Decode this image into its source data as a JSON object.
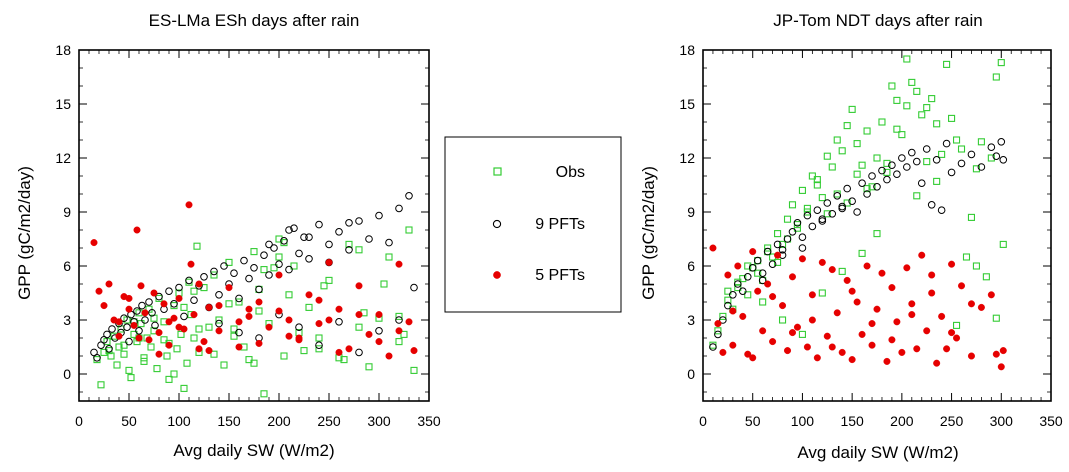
{
  "chart_data": [
    {
      "type": "scatter",
      "title": "ES-LMa ESh days after rain",
      "xlabel": "Avg daily SW (W/m2)",
      "ylabel": "GPP (gC/m2/day)",
      "xlim": [
        0,
        350
      ],
      "ylim": [
        -1.5,
        18
      ],
      "xticks": [
        "0",
        "50",
        "100",
        "150",
        "200",
        "250",
        "300",
        "350"
      ],
      "yticks": [
        "0",
        "3",
        "6",
        "9",
        "12",
        "15",
        "18"
      ],
      "grid": false,
      "series": [
        {
          "name": "Obs",
          "marker": "square",
          "color": "#33cc33",
          "x": [
            18,
            22,
            25,
            28,
            32,
            35,
            38,
            40,
            42,
            45,
            48,
            50,
            52,
            55,
            58,
            60,
            62,
            65,
            68,
            70,
            72,
            75,
            78,
            80,
            85,
            88,
            90,
            95,
            98,
            100,
            102,
            105,
            108,
            110,
            112,
            115,
            118,
            120,
            125,
            130,
            135,
            140,
            145,
            150,
            155,
            160,
            165,
            170,
            175,
            180,
            185,
            190,
            195,
            200,
            205,
            210,
            215,
            220,
            230,
            240,
            250,
            260,
            270,
            280,
            290,
            300,
            310,
            320,
            330,
            335,
            45,
            55,
            65,
            75,
            85,
            95,
            105,
            115,
            135,
            155,
            175,
            185,
            205,
            225,
            245,
            265,
            285,
            305,
            325,
            30,
            60,
            90,
            120,
            150,
            180,
            200,
            240,
            280,
            320
          ],
          "y": [
            0.8,
            -0.6,
            1.2,
            1.8,
            1.0,
            2.1,
            0.5,
            1.5,
            2.5,
            1.1,
            3.0,
            0.2,
            -0.2,
            2.2,
            1.8,
            3.4,
            2.8,
            0.9,
            2.0,
            3.6,
            1.5,
            2.4,
            0.3,
            4.2,
            2.9,
            1.0,
            -0.3,
            3.8,
            1.4,
            4.5,
            2.2,
            -0.8,
            0.6,
            5.1,
            3.3,
            2.0,
            7.1,
            1.2,
            4.8,
            2.6,
            5.5,
            3.0,
            0.5,
            6.2,
            2.1,
            4.0,
            1.5,
            0.8,
            6.8,
            3.5,
            -1.1,
            2.8,
            5.9,
            7.5,
            1.0,
            4.4,
            6.0,
            2.3,
            3.7,
            1.4,
            5.2,
            0.9,
            7.2,
            2.6,
            0.4,
            3.1,
            6.5,
            1.8,
            8.0,
            0.2,
            1.6,
            2.9,
            0.7,
            3.1,
            1.9,
            0.0,
            3.7,
            4.6,
            1.1,
            2.5,
            0.6,
            5.8,
            7.3,
            1.3,
            4.9,
            0.8,
            3.4,
            5.0,
            2.2,
            1.3,
            2.0,
            1.7,
            2.5,
            3.9,
            4.7,
            6.5,
            2.0,
            6.9,
            3.2
          ]
        },
        {
          "name": "9 PFTs",
          "marker": "open-circle",
          "color": "#000000",
          "x": [
            15,
            18,
            22,
            25,
            28,
            30,
            33,
            36,
            40,
            42,
            45,
            48,
            50,
            52,
            55,
            58,
            60,
            63,
            66,
            70,
            73,
            76,
            80,
            85,
            90,
            95,
            100,
            105,
            110,
            115,
            120,
            125,
            130,
            135,
            140,
            145,
            150,
            155,
            160,
            165,
            170,
            175,
            180,
            185,
            190,
            195,
            200,
            205,
            210,
            215,
            220,
            225,
            230,
            240,
            250,
            260,
            270,
            280,
            290,
            300,
            310,
            320,
            330,
            335,
            140,
            160,
            180,
            200,
            220,
            240,
            260,
            280,
            300,
            320,
            190,
            210,
            230,
            250,
            270
          ],
          "y": [
            1.2,
            0.9,
            1.6,
            1.9,
            2.2,
            1.4,
            2.5,
            2.0,
            2.8,
            2.3,
            3.1,
            2.6,
            1.8,
            3.3,
            2.9,
            3.5,
            2.4,
            3.8,
            3.0,
            4.0,
            3.4,
            2.7,
            4.3,
            3.6,
            4.6,
            3.9,
            4.8,
            3.2,
            5.2,
            4.1,
            4.9,
            5.4,
            3.7,
            5.7,
            4.4,
            6.0,
            5.0,
            5.6,
            4.2,
            6.3,
            5.3,
            5.9,
            4.7,
            6.6,
            5.5,
            7.0,
            6.1,
            7.4,
            5.8,
            8.1,
            6.7,
            7.6,
            6.4,
            8.3,
            7.2,
            7.9,
            6.9,
            8.5,
            7.5,
            8.8,
            7.3,
            9.2,
            9.9,
            4.8,
            2.8,
            2.3,
            2.0,
            3.3,
            2.6,
            1.6,
            2.9,
            1.2,
            2.4,
            3.0,
            7.2,
            8.0,
            7.6,
            6.2,
            8.4
          ]
        },
        {
          "name": "5 PFTs",
          "marker": "filled-circle",
          "color": "#e60000",
          "x": [
            15,
            20,
            25,
            30,
            35,
            40,
            45,
            50,
            55,
            58,
            62,
            66,
            70,
            75,
            80,
            85,
            90,
            95,
            100,
            105,
            110,
            112,
            115,
            120,
            125,
            130,
            140,
            150,
            160,
            170,
            180,
            190,
            200,
            210,
            220,
            230,
            240,
            250,
            260,
            270,
            280,
            290,
            300,
            310,
            320,
            330,
            335,
            40,
            60,
            80,
            100,
            120,
            140,
            160,
            180,
            200,
            220,
            240,
            260,
            280,
            300,
            320,
            50,
            90,
            130,
            170,
            210,
            250
          ],
          "y": [
            7.3,
            4.6,
            3.8,
            5.0,
            3.0,
            2.1,
            4.3,
            3.6,
            2.7,
            8.0,
            4.9,
            3.4,
            1.9,
            4.5,
            2.3,
            3.9,
            1.6,
            3.1,
            4.2,
            2.5,
            9.4,
            6.1,
            3.3,
            5.0,
            1.8,
            3.7,
            2.4,
            4.8,
            1.5,
            3.2,
            4.0,
            2.6,
            5.5,
            3.0,
            1.9,
            4.4,
            2.8,
            6.2,
            3.6,
            1.4,
            4.9,
            2.2,
            3.3,
            1.0,
            6.1,
            2.9,
            1.3,
            2.9,
            2.0,
            1.1,
            2.6,
            1.4,
            3.8,
            2.9,
            1.7,
            3.5,
            2.0,
            4.1,
            1.2,
            3.3,
            1.8,
            2.4,
            4.2,
            2.9,
            1.3,
            3.6,
            2.1,
            3.0
          ]
        }
      ]
    },
    {
      "type": "scatter",
      "title": "JP-Tom NDT days after rain",
      "xlabel": "Avg daily SW (W/m2)",
      "ylabel": "GPP (gC/m2/day)",
      "xlim": [
        0,
        350
      ],
      "ylim": [
        -1.5,
        18
      ],
      "xticks": [
        "0",
        "50",
        "100",
        "150",
        "200",
        "250",
        "300",
        "350"
      ],
      "yticks": [
        "0",
        "3",
        "6",
        "9",
        "12",
        "15",
        "18"
      ],
      "grid": false,
      "series": [
        {
          "name": "Obs",
          "marker": "square",
          "color": "#33cc33",
          "x": [
            10,
            15,
            20,
            25,
            30,
            35,
            40,
            45,
            50,
            55,
            60,
            65,
            70,
            75,
            80,
            85,
            90,
            95,
            100,
            105,
            110,
            115,
            120,
            125,
            130,
            135,
            140,
            145,
            150,
            155,
            160,
            165,
            170,
            175,
            180,
            185,
            190,
            195,
            200,
            205,
            210,
            215,
            220,
            225,
            230,
            235,
            240,
            250,
            255,
            260,
            270,
            275,
            280,
            290,
            295,
            300,
            302,
            25,
            35,
            45,
            55,
            65,
            75,
            85,
            95,
            105,
            115,
            125,
            135,
            145,
            155,
            165,
            175,
            185,
            195,
            205,
            215,
            225,
            235,
            245,
            255,
            265,
            275,
            285,
            295,
            60,
            80,
            100,
            120,
            140,
            160
          ],
          "y": [
            1.6,
            2.4,
            3.2,
            4.1,
            3.6,
            4.8,
            5.3,
            4.4,
            5.9,
            6.3,
            5.2,
            7.0,
            6.5,
            7.8,
            7.2,
            8.6,
            9.4,
            8.1,
            10.2,
            9.0,
            11.0,
            10.5,
            9.8,
            12.1,
            11.5,
            13.0,
            12.4,
            13.8,
            14.7,
            12.8,
            11.6,
            13.5,
            10.4,
            7.8,
            14.0,
            11.2,
            16.0,
            15.2,
            13.3,
            17.5,
            16.2,
            9.9,
            14.4,
            11.8,
            15.3,
            10.7,
            12.2,
            14.2,
            13.0,
            12.5,
            8.7,
            11.4,
            12.9,
            12.0,
            16.5,
            17.3,
            7.2,
            4.6,
            5.1,
            6.0,
            5.6,
            6.8,
            6.2,
            7.5,
            8.3,
            9.2,
            10.8,
            8.9,
            10.0,
            9.5,
            11.1,
            10.3,
            12.0,
            11.7,
            13.6,
            14.9,
            15.7,
            14.8,
            13.9,
            17.2,
            2.7,
            6.5,
            6.0,
            5.4,
            3.1,
            4.0,
            3.0,
            2.2,
            4.5,
            5.7,
            6.7
          ]
        },
        {
          "name": "9 PFTs",
          "marker": "open-circle",
          "color": "#000000",
          "x": [
            10,
            15,
            20,
            25,
            30,
            35,
            40,
            45,
            50,
            55,
            60,
            65,
            70,
            75,
            80,
            85,
            90,
            95,
            100,
            105,
            110,
            115,
            120,
            125,
            130,
            135,
            140,
            145,
            150,
            155,
            160,
            165,
            170,
            175,
            180,
            185,
            190,
            195,
            200,
            205,
            210,
            215,
            220,
            225,
            230,
            235,
            240,
            245,
            250,
            260,
            270,
            280,
            290,
            295,
            300,
            302,
            60,
            80,
            100,
            120,
            140
          ],
          "y": [
            1.5,
            2.2,
            3.0,
            3.8,
            4.4,
            5.0,
            4.6,
            5.4,
            5.9,
            6.3,
            5.6,
            6.8,
            6.1,
            7.2,
            6.6,
            7.5,
            7.9,
            8.4,
            7.0,
            8.8,
            8.2,
            9.1,
            8.6,
            9.5,
            8.9,
            9.9,
            9.2,
            10.3,
            9.6,
            9.0,
            10.6,
            10.0,
            11.0,
            10.4,
            11.3,
            10.8,
            11.6,
            11.1,
            12.0,
            11.5,
            12.3,
            11.8,
            10.6,
            12.5,
            9.4,
            11.9,
            9.1,
            12.8,
            11.2,
            11.7,
            12.2,
            11.5,
            12.6,
            12.1,
            12.9,
            11.9,
            5.2,
            6.9,
            7.6,
            8.5,
            9.3
          ]
        },
        {
          "name": "5 PFTs",
          "marker": "filled-circle",
          "color": "#e60000",
          "x": [
            10,
            15,
            20,
            25,
            30,
            35,
            40,
            45,
            50,
            55,
            60,
            65,
            70,
            75,
            80,
            85,
            90,
            95,
            100,
            105,
            110,
            115,
            120,
            125,
            130,
            135,
            140,
            145,
            150,
            155,
            160,
            165,
            170,
            175,
            180,
            185,
            190,
            195,
            200,
            205,
            210,
            215,
            220,
            225,
            230,
            235,
            240,
            245,
            250,
            255,
            260,
            270,
            280,
            290,
            295,
            300,
            302,
            30,
            50,
            70,
            90,
            110,
            130,
            150,
            170,
            190,
            210,
            230,
            250,
            270
          ],
          "y": [
            7.0,
            2.8,
            1.2,
            5.5,
            1.6,
            6.0,
            3.2,
            1.1,
            6.8,
            4.6,
            2.4,
            5.0,
            1.8,
            6.6,
            3.8,
            1.3,
            5.4,
            2.6,
            6.4,
            1.5,
            4.4,
            0.9,
            6.2,
            2.1,
            5.8,
            3.4,
            1.2,
            5.2,
            0.8,
            4.0,
            2.2,
            6.0,
            1.6,
            3.6,
            5.6,
            0.7,
            4.8,
            2.9,
            1.2,
            5.9,
            3.9,
            1.4,
            6.6,
            2.4,
            5.5,
            0.6,
            3.2,
            1.4,
            6.1,
            2.0,
            4.9,
            1.0,
            3.7,
            4.4,
            1.1,
            0.4,
            1.3,
            3.5,
            0.9,
            4.3,
            2.3,
            3.0,
            1.5,
            4.6,
            2.8,
            1.9,
            3.3,
            4.5,
            2.3,
            3.9
          ]
        }
      ]
    }
  ],
  "legend": {
    "entries": [
      {
        "label": "Obs",
        "marker": "square",
        "color": "#33cc33"
      },
      {
        "label": "9 PFTs",
        "marker": "open-circle",
        "color": "#000000"
      },
      {
        "label": "5 PFTs",
        "marker": "filled-circle",
        "color": "#e60000"
      }
    ]
  }
}
